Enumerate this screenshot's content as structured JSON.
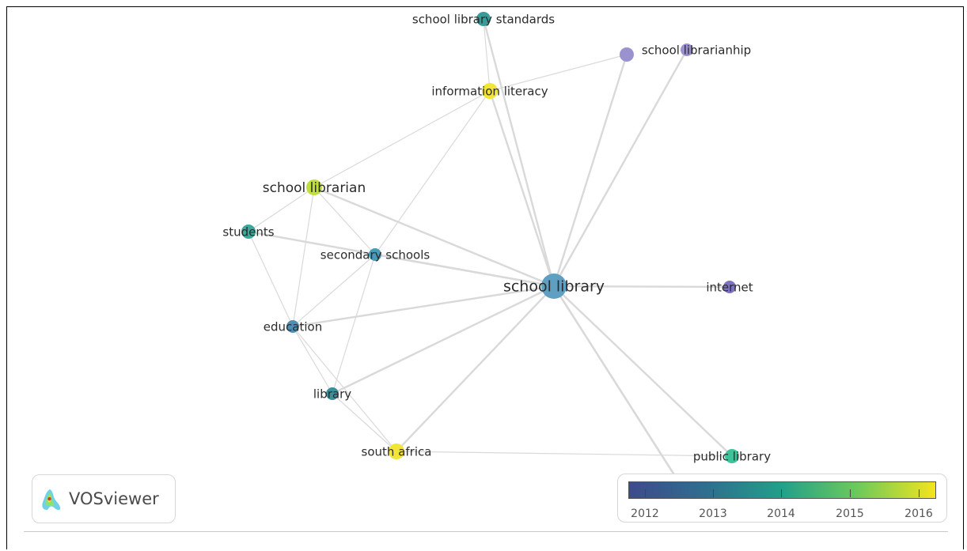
{
  "app": {
    "name": "VOSviewer"
  },
  "nodes": [
    {
      "id": "school-library",
      "label": "school library",
      "color": "#5f9fc2"
    },
    {
      "id": "school-library-standards",
      "label": "school library standards",
      "color": "#3a9a9a"
    },
    {
      "id": "information-literacy",
      "label": "information literacy",
      "color": "#f2e535"
    },
    {
      "id": "school-librarianhip-a",
      "label": "",
      "color": "#9a92cf"
    },
    {
      "id": "school-librarianhip",
      "label": "school librarianhip",
      "color": "#9a92cf"
    },
    {
      "id": "school-librarian",
      "label": "school librarian",
      "color": "#bfe03a"
    },
    {
      "id": "students",
      "label": "students",
      "color": "#3aa89a"
    },
    {
      "id": "secondary-schools",
      "label": "secondary schools",
      "color": "#4a9ab8"
    },
    {
      "id": "internet",
      "label": "internet",
      "color": "#7b72c4"
    },
    {
      "id": "education",
      "label": "education",
      "color": "#4f8fb3"
    },
    {
      "id": "library",
      "label": "library",
      "color": "#3a8f9a"
    },
    {
      "id": "south-africa",
      "label": "south africa",
      "color": "#f2e535"
    },
    {
      "id": "public-library",
      "label": "public library",
      "color": "#3fc29a"
    }
  ],
  "edges": [
    [
      "school-library",
      "school-library-standards"
    ],
    [
      "school-library",
      "information-literacy"
    ],
    [
      "school-library",
      "school-librarianhip-a"
    ],
    [
      "school-library",
      "school-librarianhip"
    ],
    [
      "school-library",
      "school-librarian"
    ],
    [
      "school-library",
      "students"
    ],
    [
      "school-library",
      "secondary-schools"
    ],
    [
      "school-library",
      "internet"
    ],
    [
      "school-library",
      "education"
    ],
    [
      "school-library",
      "library"
    ],
    [
      "school-library",
      "south-africa"
    ],
    [
      "school-library",
      "public-library"
    ],
    [
      "school-library-standards",
      "information-literacy"
    ],
    [
      "information-literacy",
      "school-librarianhip-a"
    ],
    [
      "information-literacy",
      "school-librarian"
    ],
    [
      "information-literacy",
      "secondary-schools"
    ],
    [
      "school-librarian",
      "students"
    ],
    [
      "school-librarian",
      "secondary-schools"
    ],
    [
      "school-librarian",
      "education"
    ],
    [
      "students",
      "secondary-schools"
    ],
    [
      "students",
      "education"
    ],
    [
      "secondary-schools",
      "education"
    ],
    [
      "secondary-schools",
      "library"
    ],
    [
      "education",
      "library"
    ],
    [
      "education",
      "south-africa"
    ],
    [
      "library",
      "south-africa"
    ],
    [
      "public-library",
      "south-africa"
    ]
  ],
  "legend": {
    "ticks": [
      "2012",
      "2013",
      "2014",
      "2015",
      "2016"
    ],
    "gradient": [
      "#3e4a8c",
      "#2f6e8e",
      "#22a08a",
      "#6fca5a",
      "#f4e41d"
    ]
  }
}
